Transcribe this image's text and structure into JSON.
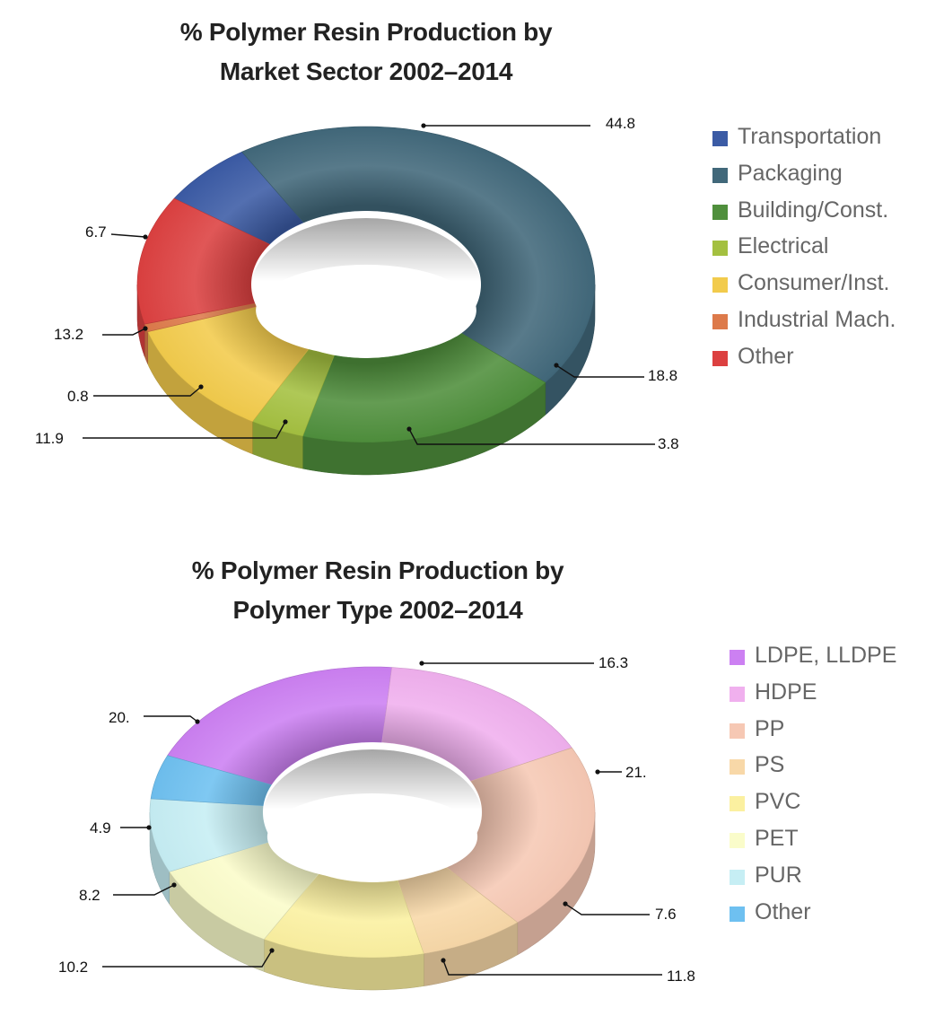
{
  "chart_data": [
    {
      "type": "pie",
      "style": "3d-donut",
      "title": "% Polymer Resin Production by Market Sector 2002–2014",
      "title_lines": [
        "% Polymer Resin Production by",
        "Market Sector 2002–2014"
      ],
      "legend_position": "right",
      "slices": [
        {
          "label": "Transportation",
          "value": 6.7,
          "color": "#3b5ba5"
        },
        {
          "label": "Packaging",
          "value": 44.8,
          "color": "#41687a"
        },
        {
          "label": "Building/Const.",
          "value": 18.8,
          "color": "#4f8f3c"
        },
        {
          "label": "Electrical",
          "value": 3.8,
          "color": "#a4c040"
        },
        {
          "label": "Consumer/Inst.",
          "value": 11.9,
          "color": "#f2cb4c"
        },
        {
          "label": "Industrial Mach.",
          "value": 0.8,
          "color": "#dd7a4a"
        },
        {
          "label": "Other",
          "value": 13.2,
          "color": "#dc4040"
        }
      ],
      "value_labels": [
        "6.7",
        "44.8",
        "18.8",
        "3.8",
        "11.9",
        "0.8",
        "13.2"
      ]
    },
    {
      "type": "pie",
      "style": "3d-donut",
      "title": "% Polymer Resin Production by Polymer Type 2002–2014",
      "title_lines": [
        "% Polymer Resin Production by",
        "Polymer Type 2002–2014"
      ],
      "legend_position": "right",
      "slices": [
        {
          "label": "LDPE, LLDPE",
          "value": 20.0,
          "color": "#cc80f2"
        },
        {
          "label": "HDPE",
          "value": 16.3,
          "color": "#f0b0ee"
        },
        {
          "label": "PP",
          "value": 21.0,
          "color": "#f6c8b4"
        },
        {
          "label": "PS",
          "value": 7.6,
          "color": "#f8d8a8"
        },
        {
          "label": "PVC",
          "value": 11.8,
          "color": "#fbf0a0"
        },
        {
          "label": "PET",
          "value": 10.2,
          "color": "#fafcca"
        },
        {
          "label": "PUR",
          "value": 8.2,
          "color": "#c6eef4"
        },
        {
          "label": "Other",
          "value": 4.9,
          "color": "#6ec0f0"
        }
      ],
      "value_labels": [
        "20.",
        "16.3",
        "21.",
        "7.6",
        "11.8",
        "10.2",
        "8.2",
        "4.9"
      ]
    }
  ]
}
